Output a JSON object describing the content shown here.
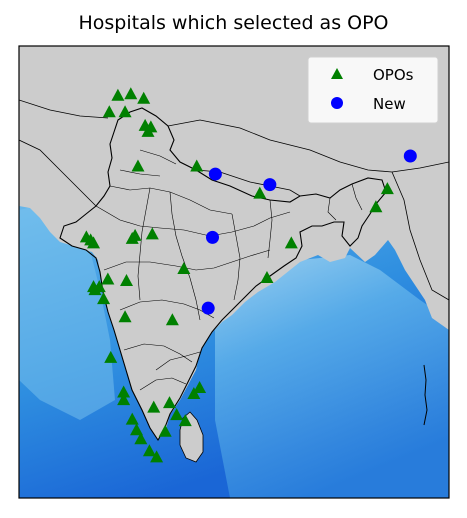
{
  "title": "Hospitals which selected as OPO",
  "legend": {
    "placement": "upper-right",
    "items": [
      {
        "label": "OPOs",
        "marker": "triangle",
        "color": "#008000"
      },
      {
        "label": "New",
        "marker": "circle",
        "color": "#0000ff"
      }
    ]
  },
  "colors": {
    "land": "#cccccc",
    "ocean_shallow": "#a9d6f0",
    "ocean_mid": "#3fa0e6",
    "ocean_deep": "#1a66d6",
    "border": "#000000",
    "opo": "#008000",
    "new": "#0000ff"
  },
  "chart_data": {
    "type": "scatter",
    "title": "Hospitals which selected as OPO",
    "xlim": [
      68,
      98
    ],
    "ylim": [
      6,
      36
    ],
    "series": [
      {
        "name": "OPOs",
        "marker": "triangle",
        "color": "#008000",
        "points": [
          [
            74.9,
            32.7
          ],
          [
            75.8,
            32.8
          ],
          [
            76.7,
            32.5
          ],
          [
            74.3,
            31.6
          ],
          [
            75.4,
            31.6
          ],
          [
            76.8,
            30.7
          ],
          [
            77.2,
            30.6
          ],
          [
            77.0,
            30.3
          ],
          [
            76.3,
            28.0
          ],
          [
            80.4,
            28.0
          ],
          [
            84.8,
            26.2
          ],
          [
            93.7,
            26.5
          ],
          [
            92.9,
            25.3
          ],
          [
            72.7,
            23.3
          ],
          [
            73.0,
            23.1
          ],
          [
            73.2,
            22.9
          ],
          [
            75.9,
            23.2
          ],
          [
            76.1,
            23.4
          ],
          [
            77.3,
            23.5
          ],
          [
            79.5,
            21.2
          ],
          [
            87.0,
            22.9
          ],
          [
            73.3,
            19.8
          ],
          [
            73.2,
            20.0
          ],
          [
            73.6,
            20.0
          ],
          [
            74.2,
            20.5
          ],
          [
            75.5,
            20.4
          ],
          [
            85.3,
            20.6
          ],
          [
            73.9,
            19.2
          ],
          [
            75.4,
            18.0
          ],
          [
            78.7,
            17.8
          ],
          [
            74.4,
            15.3
          ],
          [
            75.3,
            13.0
          ],
          [
            75.3,
            12.5
          ],
          [
            77.4,
            12.0
          ],
          [
            78.5,
            12.3
          ],
          [
            80.2,
            12.9
          ],
          [
            80.6,
            13.3
          ],
          [
            79.6,
            11.1
          ],
          [
            75.9,
            11.2
          ],
          [
            76.2,
            10.5
          ],
          [
            76.5,
            9.9
          ],
          [
            78.2,
            10.4
          ],
          [
            77.1,
            9.1
          ],
          [
            77.6,
            8.7
          ],
          [
            79.0,
            11.5
          ]
        ]
      },
      {
        "name": "New",
        "marker": "circle",
        "color": "#0000ff",
        "points": [
          [
            81.7,
            27.5
          ],
          [
            85.5,
            26.8
          ],
          [
            95.3,
            28.7
          ],
          [
            81.5,
            23.3
          ],
          [
            81.2,
            18.6
          ]
        ]
      }
    ]
  }
}
